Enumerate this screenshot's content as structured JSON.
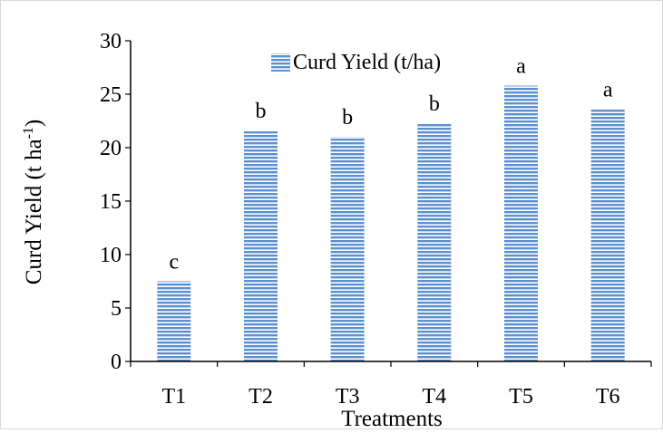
{
  "chart_data": {
    "type": "bar",
    "categories": [
      "T1",
      "T2",
      "T3",
      "T4",
      "T5",
      "T6"
    ],
    "series": [
      {
        "name": "Curd Yield (t/ha)",
        "values": [
          7.5,
          21.6,
          21.0,
          22.3,
          25.8,
          23.6
        ],
        "color": "#5b8fd0",
        "pattern": "horizontal-stripes"
      }
    ],
    "significance_labels": [
      "c",
      "b",
      "b",
      "b",
      "a",
      "a"
    ],
    "title": "",
    "xlabel": "Treatments",
    "ylabel": "Curd Yield (t ha",
    "ylabel_superscript": "-1",
    "ylabel_suffix": ")",
    "ylim": [
      0,
      30
    ],
    "yticks": [
      0,
      5,
      10,
      15,
      20,
      25,
      30
    ],
    "grid": false,
    "legend_position": "top-center"
  }
}
